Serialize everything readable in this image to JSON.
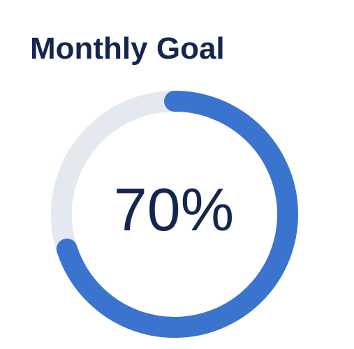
{
  "widget": {
    "title": "Monthly Goal",
    "progress_label": "70%",
    "progress_fraction": 0.7
  },
  "colors": {
    "title_text": "#14264f",
    "progress_fill": "#3a74cf",
    "progress_track": "#e4e9f0",
    "value_text": "#14264f"
  }
}
